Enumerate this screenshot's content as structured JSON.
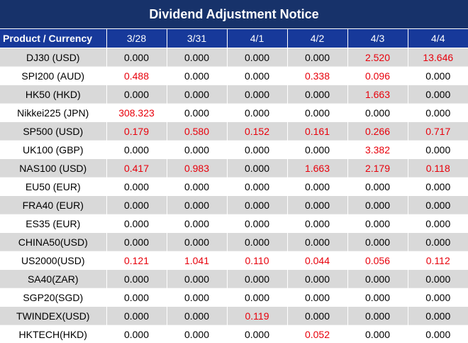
{
  "title": "Dividend Adjustment Notice",
  "table": {
    "columns": [
      "Product / Currency",
      "3/28",
      "3/31",
      "4/1",
      "4/2",
      "4/3",
      "4/4"
    ],
    "rows": [
      {
        "product": "DJ30 (USD)",
        "values": [
          "0.000",
          "0.000",
          "0.000",
          "0.000",
          "2.520",
          "13.646"
        ]
      },
      {
        "product": "SPI200 (AUD)",
        "values": [
          "0.488",
          "0.000",
          "0.000",
          "0.338",
          "0.096",
          "0.000"
        ]
      },
      {
        "product": "HK50 (HKD)",
        "values": [
          "0.000",
          "0.000",
          "0.000",
          "0.000",
          "1.663",
          "0.000"
        ]
      },
      {
        "product": "Nikkei225 (JPN)",
        "values": [
          "308.323",
          "0.000",
          "0.000",
          "0.000",
          "0.000",
          "0.000"
        ]
      },
      {
        "product": "SP500 (USD)",
        "values": [
          "0.179",
          "0.580",
          "0.152",
          "0.161",
          "0.266",
          "0.717"
        ]
      },
      {
        "product": "UK100 (GBP)",
        "values": [
          "0.000",
          "0.000",
          "0.000",
          "0.000",
          "3.382",
          "0.000"
        ]
      },
      {
        "product": "NAS100 (USD)",
        "values": [
          "0.417",
          "0.983",
          "0.000",
          "1.663",
          "2.179",
          "0.118"
        ]
      },
      {
        "product": "EU50 (EUR)",
        "values": [
          "0.000",
          "0.000",
          "0.000",
          "0.000",
          "0.000",
          "0.000"
        ]
      },
      {
        "product": "FRA40 (EUR)",
        "values": [
          "0.000",
          "0.000",
          "0.000",
          "0.000",
          "0.000",
          "0.000"
        ]
      },
      {
        "product": "ES35 (EUR)",
        "values": [
          "0.000",
          "0.000",
          "0.000",
          "0.000",
          "0.000",
          "0.000"
        ]
      },
      {
        "product": "CHINA50(USD)",
        "values": [
          "0.000",
          "0.000",
          "0.000",
          "0.000",
          "0.000",
          "0.000"
        ]
      },
      {
        "product": "US2000(USD)",
        "values": [
          "0.121",
          "1.041",
          "0.110",
          "0.044",
          "0.056",
          "0.112"
        ]
      },
      {
        "product": "SA40(ZAR)",
        "values": [
          "0.000",
          "0.000",
          "0.000",
          "0.000",
          "0.000",
          "0.000"
        ]
      },
      {
        "product": "SGP20(SGD)",
        "values": [
          "0.000",
          "0.000",
          "0.000",
          "0.000",
          "0.000",
          "0.000"
        ]
      },
      {
        "product": "TWINDEX(USD)",
        "values": [
          "0.000",
          "0.000",
          "0.119",
          "0.000",
          "0.000",
          "0.000"
        ]
      },
      {
        "product": "HKTECH(HKD)",
        "values": [
          "0.000",
          "0.000",
          "0.000",
          "0.052",
          "0.000",
          "0.000"
        ]
      }
    ]
  },
  "colors": {
    "title_background": "#17326a",
    "header_background": "#17399a",
    "nonzero_value": "#e8000b",
    "zero_value": "#000000",
    "stripe_background": "#d9d9d9"
  }
}
